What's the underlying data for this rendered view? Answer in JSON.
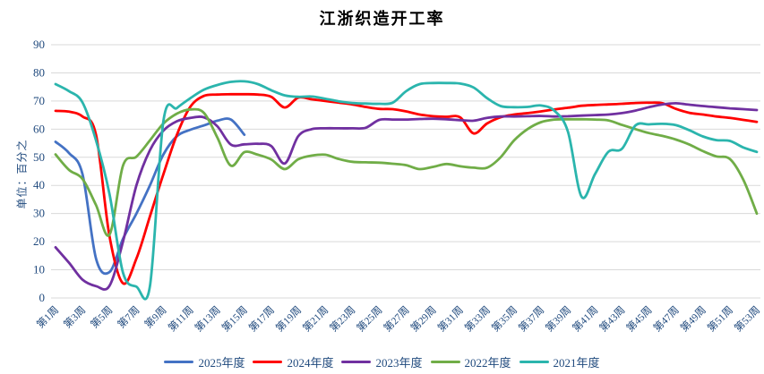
{
  "title": "江浙织造开工率",
  "y_axis_title": "单位：百分之",
  "colors": {
    "axis_text": "#1F497D",
    "grid": "#D9D9D9",
    "title_text": "#000000",
    "background": "#FFFFFF"
  },
  "chart_data": {
    "type": "line",
    "title": "江浙织造开工率",
    "xlabel": "",
    "ylabel": "单位：百分之",
    "ylim": [
      0,
      90
    ],
    "y_ticks": [
      0,
      10,
      20,
      30,
      40,
      50,
      60,
      70,
      80,
      90
    ],
    "grid": "horizontal",
    "legend_position": "bottom",
    "x_weeks": [
      1,
      2,
      3,
      4,
      5,
      6,
      7,
      8,
      9,
      10,
      11,
      12,
      13,
      14,
      15,
      16,
      17,
      18,
      19,
      20,
      21,
      22,
      23,
      24,
      25,
      26,
      27,
      28,
      29,
      30,
      31,
      32,
      33,
      34,
      35,
      36,
      37,
      38,
      39,
      40,
      41,
      42,
      43,
      44,
      45,
      46,
      47,
      48,
      49,
      50,
      51,
      52,
      53
    ],
    "x_tick_labels": [
      "第1周",
      "第3周",
      "第5周",
      "第7周",
      "第9周",
      "第11周",
      "第13周",
      "第15周",
      "第17周",
      "第19周",
      "第21周",
      "第23周",
      "第25周",
      "第27周",
      "第29周",
      "第31周",
      "第33周",
      "第35周",
      "第37周",
      "第39周",
      "第41周",
      "第43周",
      "第45周",
      "第47周",
      "第49周",
      "第51周",
      "第53周"
    ],
    "series": [
      {
        "name": "2025年度",
        "color": "#4472C4",
        "values": [
          55.5,
          51.5,
          44,
          14,
          9.2,
          21,
          30,
          40,
          51,
          57.5,
          59.8,
          61.3,
          63,
          63.4,
          58,
          null,
          null,
          null,
          null,
          null,
          null,
          null,
          null,
          null,
          null,
          null,
          null,
          null,
          null,
          null,
          null,
          null,
          null,
          null,
          null,
          null,
          null,
          null,
          null,
          null,
          null,
          null,
          null,
          null,
          null,
          null,
          null,
          null,
          null,
          null,
          null,
          null,
          null
        ]
      },
      {
        "name": "2024年度",
        "color": "#FF0000",
        "values": [
          66.5,
          66.2,
          64.5,
          58,
          22,
          5.2,
          14,
          29,
          44,
          58,
          68,
          71.8,
          72.3,
          72.4,
          72.4,
          72.3,
          71.5,
          67.7,
          71.2,
          70.6,
          70,
          69.4,
          68.8,
          67.9,
          67.2,
          67.1,
          66.3,
          65.2,
          64.6,
          64.4,
          64.2,
          58.5,
          62,
          64.2,
          65.2,
          65.7,
          66.3,
          67,
          67.6,
          68.3,
          68.6,
          68.8,
          69,
          69.3,
          69.4,
          69.2,
          67.2,
          65.8,
          65.2,
          64.5,
          64,
          63.3,
          62.6
        ]
      },
      {
        "name": "2023年度",
        "color": "#7030A0",
        "values": [
          18,
          12.5,
          6.5,
          4.2,
          4.3,
          20,
          40,
          52.5,
          59.5,
          62.8,
          64,
          64.2,
          61,
          54.5,
          54.6,
          54.8,
          54,
          47.8,
          57.5,
          60,
          60.3,
          60.3,
          60.3,
          60.5,
          63.3,
          63.4,
          63.4,
          63.6,
          63.7,
          63.5,
          63.2,
          63,
          64,
          64.5,
          64.5,
          64.6,
          64.7,
          64.5,
          64.6,
          64.8,
          65,
          65.2,
          65.7,
          66.6,
          67.8,
          68.8,
          69.2,
          68.7,
          68.2,
          67.8,
          67.4,
          67.1,
          66.8
        ]
      },
      {
        "name": "2022年度",
        "color": "#70AD47",
        "values": [
          51,
          45.5,
          42.3,
          33,
          22.5,
          47,
          50.2,
          56,
          62,
          65.5,
          67,
          65.8,
          57,
          47,
          51.8,
          50.9,
          49.2,
          45.8,
          49.3,
          50.6,
          50.9,
          49.4,
          48.4,
          48.2,
          48.1,
          47.7,
          47.2,
          45.8,
          46.6,
          47.6,
          46.8,
          46.3,
          46.3,
          50,
          56,
          60,
          62.5,
          63.4,
          63.5,
          63.5,
          63.4,
          63.1,
          61.5,
          60,
          58.6,
          57.6,
          56.3,
          54.5,
          52.2,
          50.3,
          49.4,
          42,
          30
        ]
      },
      {
        "name": "2021年度",
        "color": "#2BB5AD",
        "values": [
          76,
          73.5,
          69.5,
          56,
          37,
          9,
          4,
          4.2,
          63,
          67.5,
          71,
          74,
          75.7,
          76.8,
          77,
          76,
          73.8,
          72,
          71.5,
          71.6,
          70.8,
          69.9,
          69.3,
          69.1,
          69,
          69.4,
          73.5,
          76,
          76.4,
          76.4,
          76.2,
          74.8,
          71,
          68.2,
          67.8,
          67.9,
          68.4,
          66.5,
          59,
          36,
          44,
          52,
          53,
          61.3,
          61.7,
          61.9,
          61.4,
          59.6,
          57.4,
          56.1,
          55.8,
          53.5,
          51.9
        ]
      }
    ]
  }
}
